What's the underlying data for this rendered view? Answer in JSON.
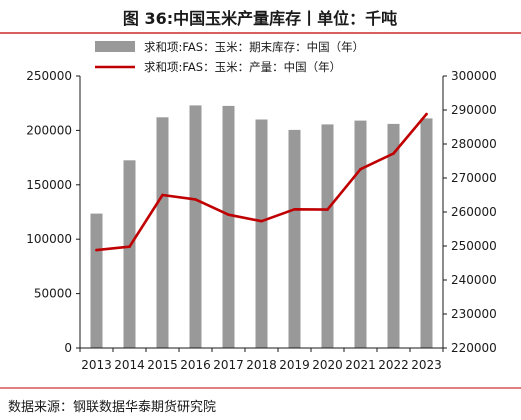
{
  "figure": {
    "title": "图 36:中国玉米产量库存丨单位：千吨",
    "source": "数据来源：钢联数据华泰期货研究院"
  },
  "chart_data": {
    "type": "bar",
    "categories": [
      "2013",
      "2014",
      "2015",
      "2016",
      "2017",
      "2018",
      "2019",
      "2020",
      "2021",
      "2022",
      "2023"
    ],
    "series": [
      {
        "name": "求和项:FAS：玉米：期末库存：中国（年）",
        "type": "bar",
        "axis": "left",
        "color": "#999999",
        "values": [
          123500,
          172500,
          212000,
          223000,
          222500,
          210000,
          200500,
          205500,
          209000,
          206000,
          211000
        ]
      },
      {
        "name": "求和项:FAS：玉米：产量：中国（年）",
        "type": "line",
        "axis": "right",
        "color": "#c00000",
        "values": [
          248800,
          249800,
          265000,
          263700,
          259200,
          257300,
          260800,
          260700,
          272600,
          277200,
          288800
        ]
      }
    ],
    "y_left": {
      "min": 0,
      "max": 250000,
      "ticks": [
        "0",
        "50000",
        "100000",
        "150000",
        "200000",
        "250000"
      ]
    },
    "y_right": {
      "min": 220000,
      "max": 300000,
      "ticks": [
        "220000",
        "230000",
        "240000",
        "250000",
        "260000",
        "270000",
        "280000",
        "290000",
        "300000"
      ]
    },
    "grid": false,
    "legend_position": "top"
  }
}
